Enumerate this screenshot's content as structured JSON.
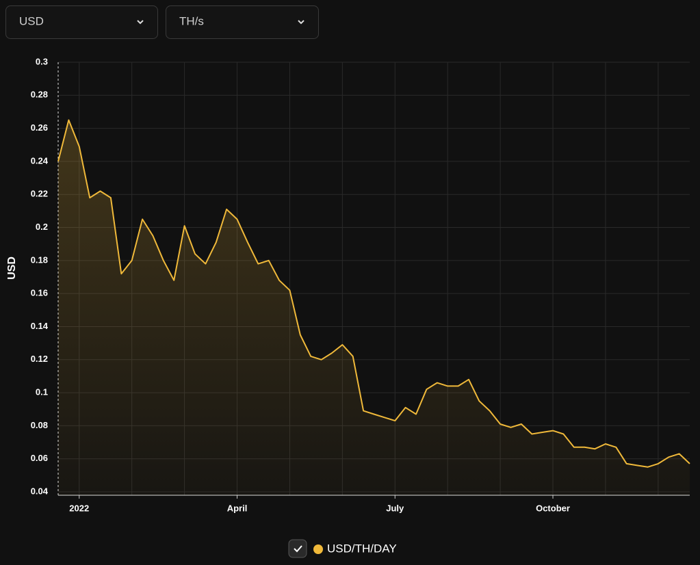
{
  "controls": {
    "currency": "USD",
    "unit": "TH/s"
  },
  "chart_data": {
    "type": "area",
    "y_label": "USD",
    "categories": [
      null,
      null,
      "2022",
      null,
      null,
      null,
      null,
      null,
      null,
      null,
      null,
      null,
      null,
      null,
      null,
      null,
      null,
      "April",
      null,
      null,
      null,
      null,
      null,
      null,
      null,
      null,
      null,
      null,
      null,
      null,
      null,
      null,
      "July",
      null,
      null,
      null,
      null,
      null,
      null,
      null,
      null,
      null,
      null,
      null,
      null,
      null,
      null,
      "October",
      null,
      null,
      null,
      null,
      null,
      null,
      null,
      null,
      null,
      null,
      null,
      null,
      null
    ],
    "series": [
      {
        "name": "USD/TH/DAY",
        "color": "#f0b93a",
        "values": [
          0.24,
          0.265,
          0.249,
          0.218,
          0.222,
          0.218,
          0.172,
          0.18,
          0.205,
          0.195,
          0.18,
          0.168,
          0.201,
          0.184,
          0.178,
          0.191,
          0.211,
          0.205,
          0.191,
          0.178,
          0.18,
          0.168,
          0.162,
          0.135,
          0.122,
          0.12,
          0.124,
          0.129,
          0.122,
          0.089,
          0.087,
          0.085,
          0.083,
          0.091,
          0.087,
          0.102,
          0.106,
          0.104,
          0.104,
          0.108,
          0.095,
          0.089,
          0.081,
          0.079,
          0.081,
          0.075,
          0.076,
          0.077,
          0.075,
          0.067,
          0.067,
          0.066,
          0.069,
          0.067,
          0.057,
          0.056,
          0.055,
          0.057,
          0.061,
          0.063,
          0.057
        ]
      }
    ],
    "ylim": [
      0.04,
      0.3
    ],
    "yticks": [
      0.04,
      0.06,
      0.08,
      0.1,
      0.12,
      0.14,
      0.16,
      0.18,
      0.2,
      0.22,
      0.24,
      0.26,
      0.28,
      0.3
    ],
    "grid": true
  }
}
